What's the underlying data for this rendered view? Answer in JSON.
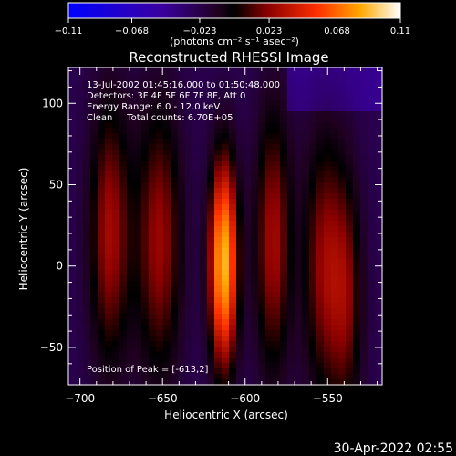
{
  "chart_data": {
    "type": "heatmap",
    "title": "Reconstructed RHESSI Image",
    "xlabel": "Heliocentric X (arcsec)",
    "ylabel": "Heliocentric Y (arcsec)",
    "xlim": [
      -707,
      -517
    ],
    "ylim": [
      -73,
      122
    ],
    "x_ticks": [
      -700,
      -650,
      -600,
      -550
    ],
    "x_tick_labels": [
      "−700",
      "−650",
      "−600",
      "−550"
    ],
    "y_ticks": [
      -50,
      0,
      50,
      100
    ],
    "y_tick_labels": [
      "−50",
      "0",
      "50",
      "100"
    ],
    "colorbar": {
      "label": "(photons cm⁻² s⁻¹ asec⁻²)",
      "min": -0.11,
      "max": 0.11,
      "ticks": [
        -0.11,
        -0.068,
        -0.023,
        0.023,
        0.068,
        0.11
      ],
      "tick_labels": [
        "−0.11",
        "−0.068",
        "−0.023",
        "0.023",
        "0.068",
        "0.11"
      ]
    },
    "annotations": [
      "13-Jul-2002 01:45:16.000 to 01:50:48.000",
      "Detectors: 3F 4F 5F 6F 7F 8F, Att 0",
      "Energy Range: 6.0 - 12.0 keV",
      "Clean     Total counts: 6.70E+05"
    ],
    "peak_label": "Position of Peak = [-613,2]",
    "peak": [
      -613,
      2
    ],
    "sources": [
      {
        "x": -613,
        "y": 2,
        "amp": 0.11,
        "sx": 6,
        "sy": 45
      },
      {
        "x": -682,
        "y": 20,
        "amp": 0.05,
        "sx": 9,
        "sy": 60
      },
      {
        "x": -652,
        "y": 15,
        "amp": 0.048,
        "sx": 10,
        "sy": 62
      },
      {
        "x": -583,
        "y": 15,
        "amp": 0.05,
        "sx": 8,
        "sy": 60
      },
      {
        "x": -552,
        "y": 0,
        "amp": 0.046,
        "sx": 9,
        "sy": 60
      },
      {
        "x": -538,
        "y": -20,
        "amp": 0.035,
        "sx": 7,
        "sy": 55
      }
    ]
  },
  "footer": {
    "date": "30-Apr-2022 02:55"
  }
}
